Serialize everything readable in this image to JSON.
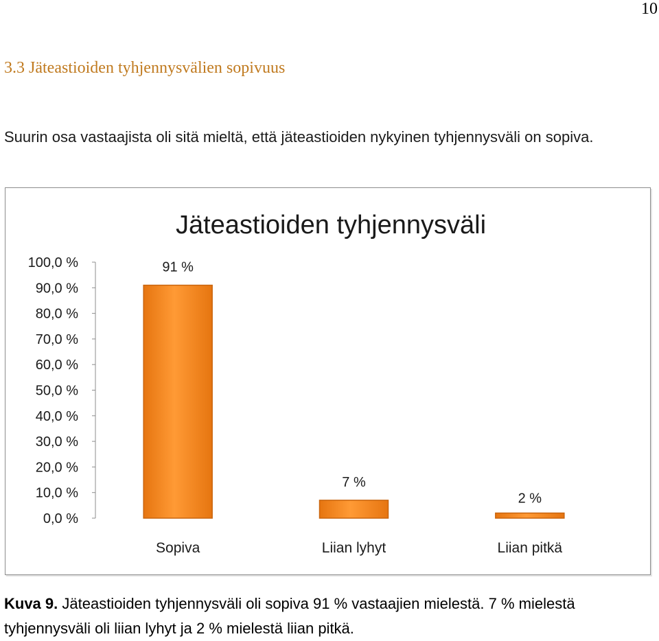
{
  "page": {
    "number": "10"
  },
  "heading": {
    "text": "3.3 Jäteastioiden tyhjennysvälien sopivuus"
  },
  "intro": {
    "text": "Suurin osa vastaajista oli sitä mieltä, että jäteastioiden nykyinen tyhjennysväli on sopiva."
  },
  "colors": {
    "heading": "#c07a1f",
    "bar": "#f58a1f",
    "bar_dark": "#c9650e"
  },
  "chart_data": {
    "type": "bar",
    "title": "Jäteastioiden tyhjennysväli",
    "categories": [
      "Sopiva",
      "Liian lyhyt",
      "Liian pitkä"
    ],
    "values": [
      91,
      7,
      2
    ],
    "data_labels": [
      "91 %",
      "7 %",
      "2 %"
    ],
    "y_ticks": [
      "0,0 %",
      "10,0 %",
      "20,0 %",
      "30,0 %",
      "40,0 %",
      "50,0 %",
      "60,0 %",
      "70,0 %",
      "80,0 %",
      "90,0 %",
      "100,0 %"
    ],
    "ylim": [
      0,
      100
    ],
    "legend": "none",
    "grid": false
  },
  "caption": {
    "label": "Kuva 9.",
    "text": " Jäteastioiden tyhjennysväli oli sopiva 91 % vastaajien mielestä. 7 % mielestä tyhjennysväli oli liian lyhyt ja 2 % mielestä liian pitkä."
  }
}
